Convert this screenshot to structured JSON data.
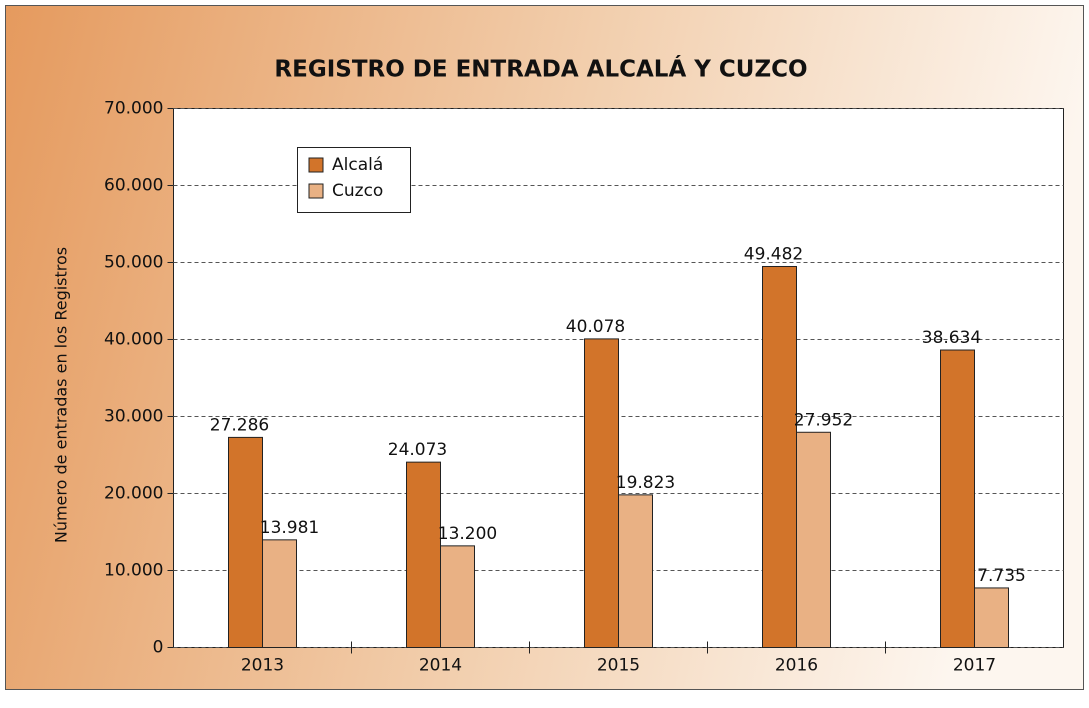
{
  "chart_data": {
    "type": "bar",
    "title": "REGISTRO DE ENTRADA ALCALÁ Y CUZCO",
    "y_label": "Número de entradas en los Registros",
    "categories": [
      "2013",
      "2014",
      "2015",
      "2016",
      "2017"
    ],
    "series": [
      {
        "name": "Alcalá",
        "color": "#d2742a",
        "values": [
          27286,
          24073,
          40078,
          49482,
          38634
        ],
        "value_labels": [
          "27.286",
          "24.073",
          "40.078",
          "49.482",
          "38.634"
        ]
      },
      {
        "name": "Cuzco",
        "color": "#e9b184",
        "values": [
          13981,
          13200,
          19823,
          27952,
          7735
        ],
        "value_labels": [
          "13.981",
          "13.200",
          "19.823",
          "27.952",
          "7.735"
        ]
      }
    ],
    "ylim": [
      0,
      70000
    ],
    "yticks": [
      0,
      {
        "value": 10000,
        "label": "10.000"
      },
      {
        "value": 20000,
        "label": "20.000"
      },
      {
        "value": 30000,
        "label": "30.000"
      },
      {
        "value": 40000,
        "label": "40.000"
      },
      {
        "value": 50000,
        "label": "50.000"
      },
      {
        "value": 60000,
        "label": "60.000"
      },
      {
        "value": 70000,
        "label": "70.000"
      }
    ],
    "grid": true,
    "legend": "upper left"
  }
}
